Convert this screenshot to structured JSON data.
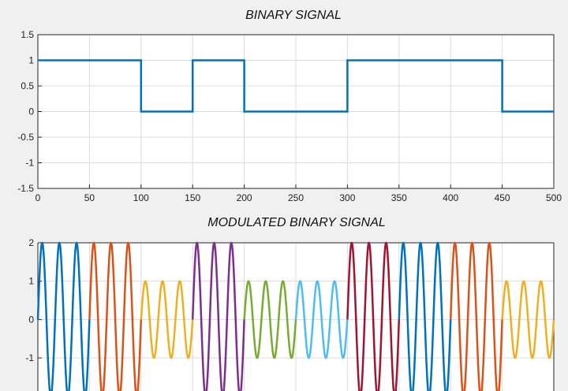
{
  "chart_data": [
    {
      "type": "line",
      "title": "BINARY SIGNAL",
      "xlabel": "",
      "ylabel": "",
      "xlim": [
        0,
        500
      ],
      "ylim": [
        -1.5,
        1.5
      ],
      "xticks": [
        "0",
        "50",
        "100",
        "150",
        "200",
        "250",
        "300",
        "350",
        "400",
        "450",
        "500"
      ],
      "yticks": [
        "1.5",
        "1",
        "0.5",
        "0",
        "-0.5",
        "-1",
        "-1.5"
      ],
      "grid": true,
      "series": [
        {
          "color": "#0072bd",
          "x": [
            0,
            100,
            100,
            150,
            150,
            200,
            200,
            300,
            300,
            450,
            450,
            500
          ],
          "y": [
            1,
            1,
            0,
            0,
            1,
            1,
            0,
            0,
            1,
            1,
            0,
            0
          ]
        }
      ]
    },
    {
      "type": "line",
      "title": "MODULATED BINARY SIGNAL",
      "xlabel": "",
      "ylabel": "",
      "xlim": [
        0,
        500
      ],
      "ylim": [
        -2,
        2
      ],
      "yticks": [
        "2",
        "1",
        "0",
        "-1"
      ],
      "grid": true,
      "cycles_per_bit_segment": 3,
      "segments": [
        {
          "x": [
            0,
            50
          ],
          "amplitude": 2,
          "color": "#0072bd"
        },
        {
          "x": [
            50,
            100
          ],
          "amplitude": 2,
          "color": "#d95319"
        },
        {
          "x": [
            100,
            150
          ],
          "amplitude": 1,
          "color": "#edb120"
        },
        {
          "x": [
            150,
            200
          ],
          "amplitude": 2,
          "color": "#7e2f8e"
        },
        {
          "x": [
            200,
            250
          ],
          "amplitude": 1,
          "color": "#77ac30"
        },
        {
          "x": [
            250,
            300
          ],
          "amplitude": 1,
          "color": "#4dbeee"
        },
        {
          "x": [
            300,
            350
          ],
          "amplitude": 2,
          "color": "#a2142f"
        },
        {
          "x": [
            350,
            400
          ],
          "amplitude": 2,
          "color": "#0072bd"
        },
        {
          "x": [
            400,
            450
          ],
          "amplitude": 2,
          "color": "#d95319"
        },
        {
          "x": [
            450,
            500
          ],
          "amplitude": 1,
          "color": "#edb120"
        }
      ]
    }
  ]
}
